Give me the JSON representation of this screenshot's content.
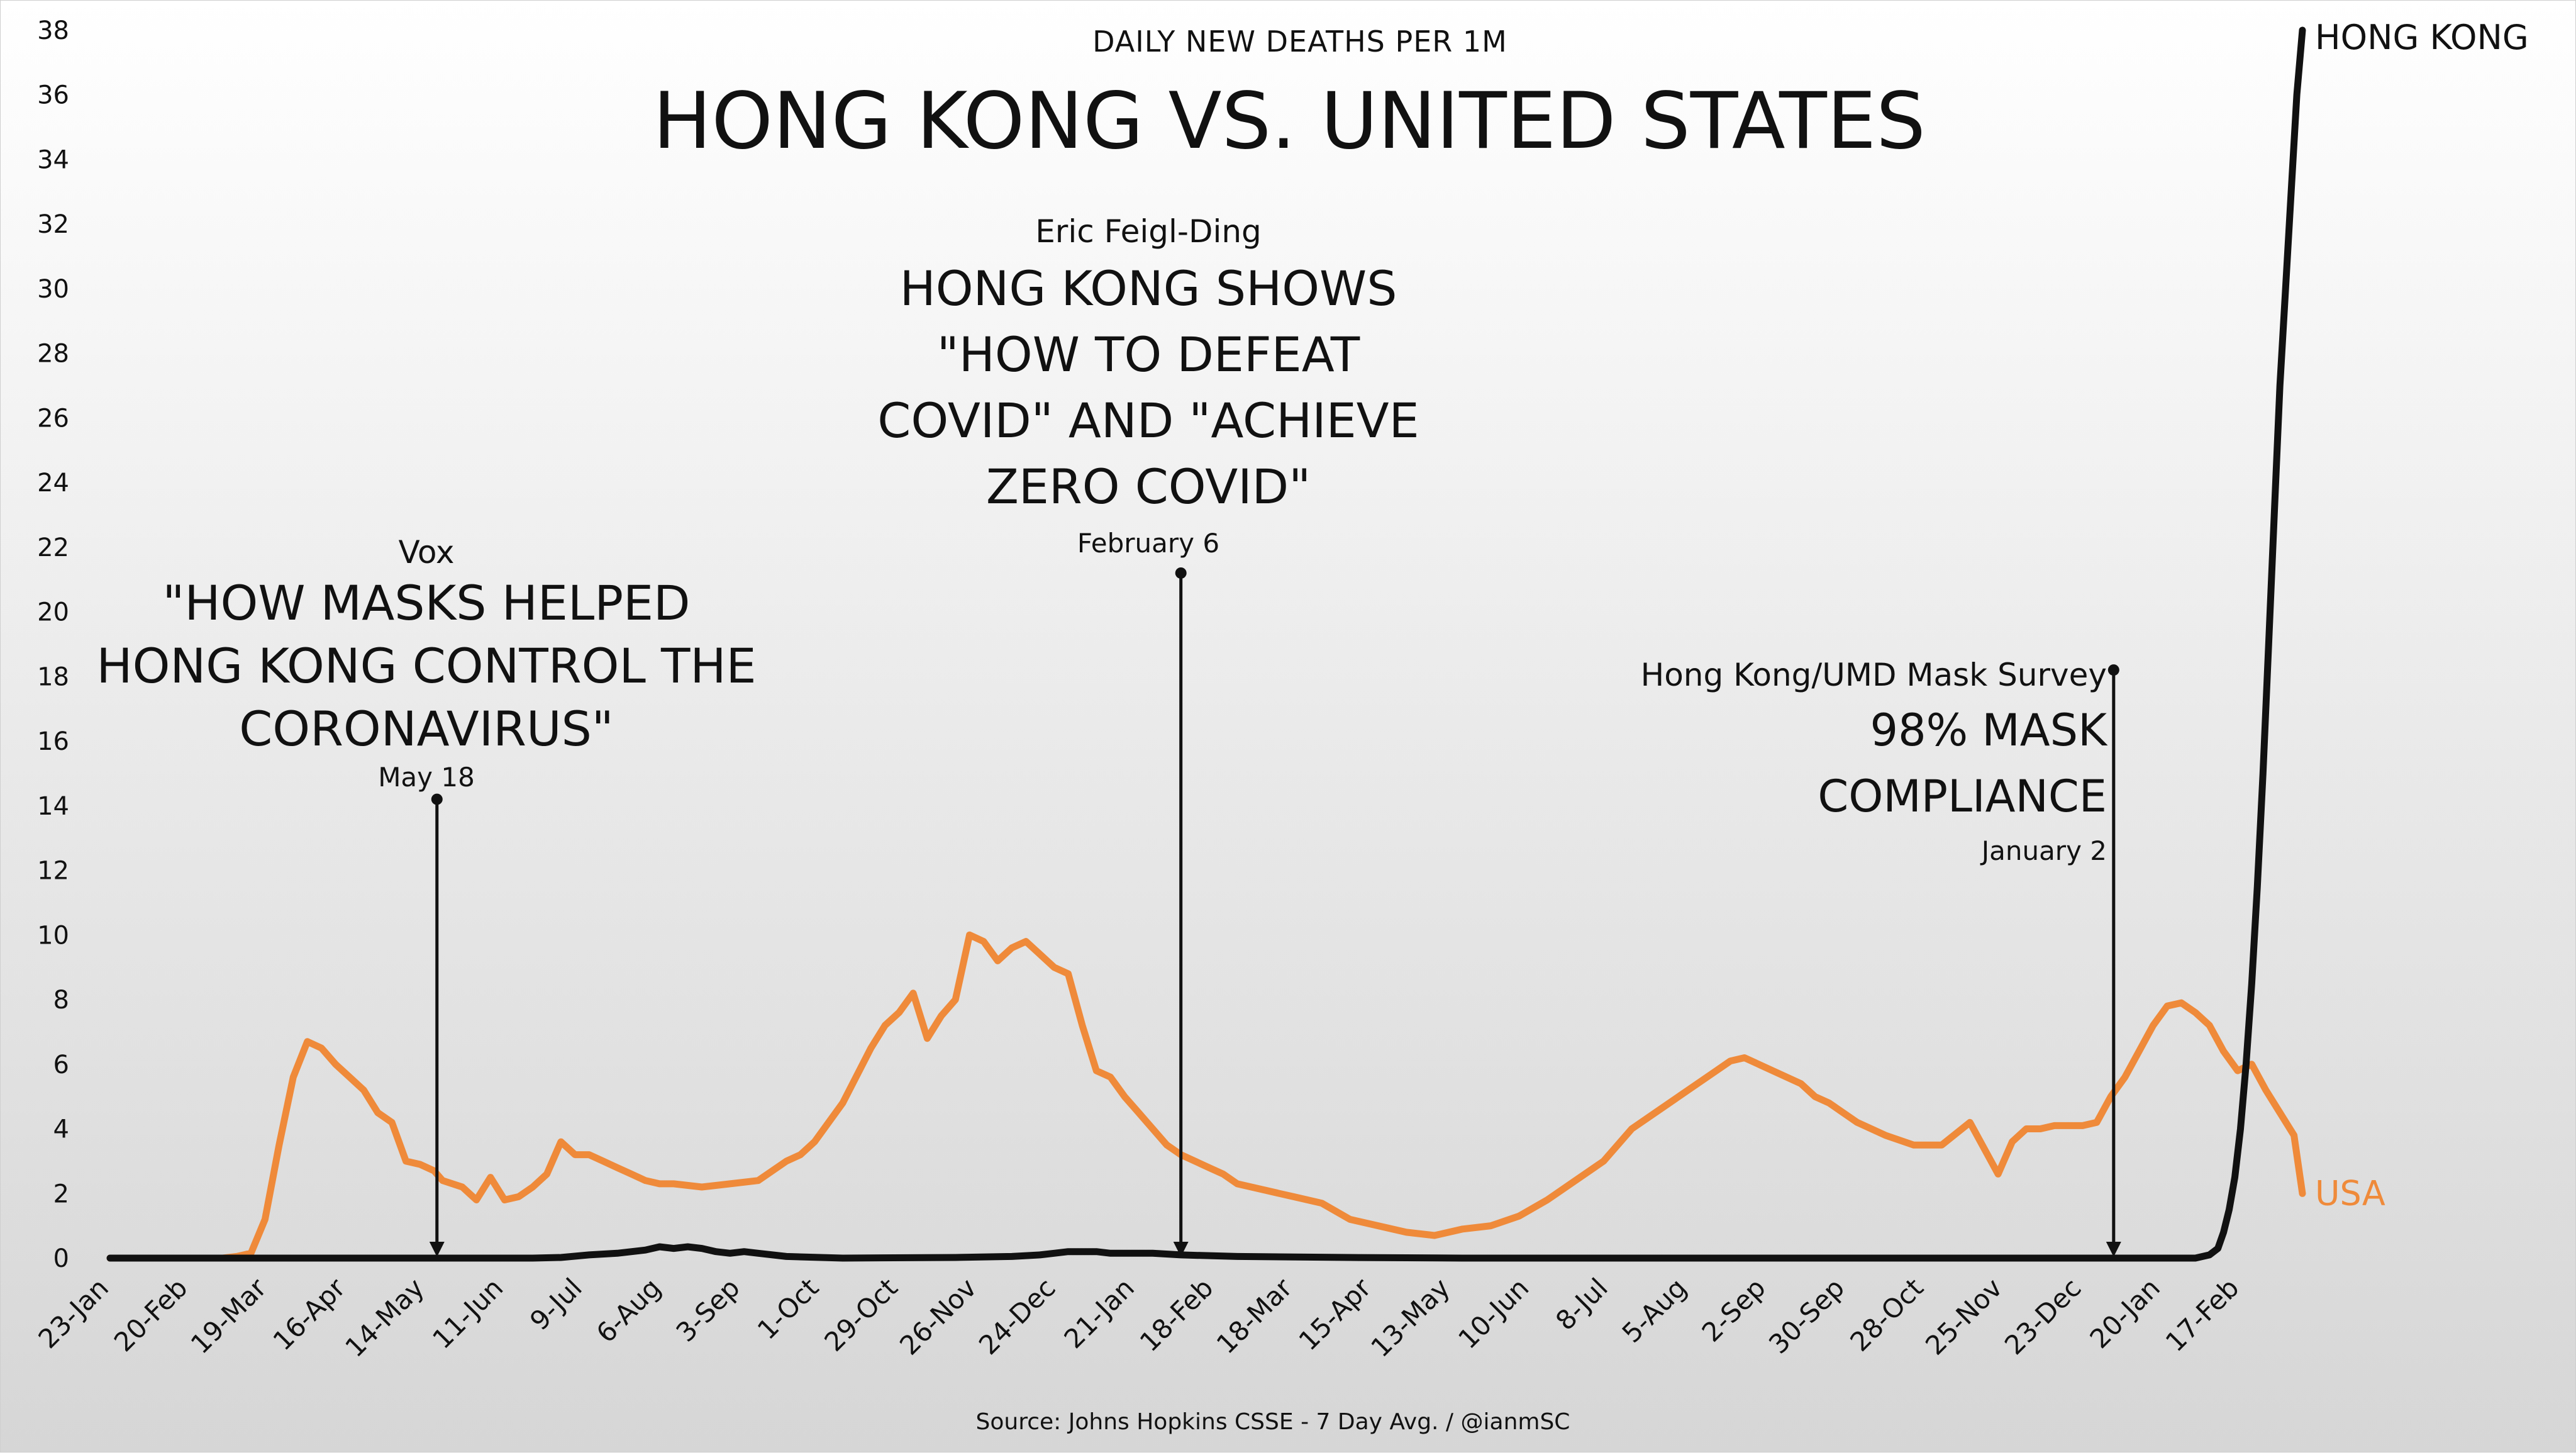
{
  "chart_data": {
    "type": "line",
    "subtitle": "DAILY NEW DEATHS PER 1M",
    "title": "HONG KONG VS. UNITED STATES",
    "source": "Source: Johns Hopkins CSSE - 7 Day Avg. / @ianmSC",
    "ylim": [
      0,
      38
    ],
    "yticks": [
      0,
      2,
      4,
      6,
      8,
      10,
      12,
      14,
      16,
      18,
      20,
      22,
      24,
      26,
      28,
      30,
      32,
      34,
      36,
      38
    ],
    "x_range": [
      0,
      780
    ],
    "x_ticks": [
      {
        "day": 0,
        "label": "23-Jan"
      },
      {
        "day": 28,
        "label": "20-Feb"
      },
      {
        "day": 56,
        "label": "19-Mar"
      },
      {
        "day": 84,
        "label": "16-Apr"
      },
      {
        "day": 112,
        "label": "14-May"
      },
      {
        "day": 140,
        "label": "11-Jun"
      },
      {
        "day": 168,
        "label": "9-Jul"
      },
      {
        "day": 196,
        "label": "6-Aug"
      },
      {
        "day": 224,
        "label": "3-Sep"
      },
      {
        "day": 252,
        "label": "1-Oct"
      },
      {
        "day": 280,
        "label": "29-Oct"
      },
      {
        "day": 308,
        "label": "26-Nov"
      },
      {
        "day": 336,
        "label": "24-Dec"
      },
      {
        "day": 364,
        "label": "21-Jan"
      },
      {
        "day": 392,
        "label": "18-Feb"
      },
      {
        "day": 420,
        "label": "18-Mar"
      },
      {
        "day": 448,
        "label": "15-Apr"
      },
      {
        "day": 476,
        "label": "13-May"
      },
      {
        "day": 504,
        "label": "10-Jun"
      },
      {
        "day": 532,
        "label": "8-Jul"
      },
      {
        "day": 560,
        "label": "5-Aug"
      },
      {
        "day": 588,
        "label": "2-Sep"
      },
      {
        "day": 616,
        "label": "30-Sep"
      },
      {
        "day": 644,
        "label": "28-Oct"
      },
      {
        "day": 672,
        "label": "25-Nov"
      },
      {
        "day": 700,
        "label": "23-Dec"
      },
      {
        "day": 728,
        "label": "20-Jan"
      },
      {
        "day": 756,
        "label": "17-Feb"
      }
    ],
    "series": [
      {
        "name": "USA",
        "color": "#ef8a3a",
        "x": [
          0,
          30,
          40,
          45,
          50,
          55,
          60,
          65,
          70,
          75,
          80,
          85,
          90,
          95,
          100,
          105,
          110,
          115,
          118,
          125,
          130,
          135,
          140,
          145,
          150,
          155,
          160,
          165,
          170,
          175,
          180,
          185,
          190,
          195,
          200,
          210,
          220,
          230,
          240,
          245,
          250,
          260,
          270,
          275,
          280,
          285,
          290,
          295,
          300,
          305,
          310,
          315,
          320,
          325,
          330,
          335,
          340,
          345,
          350,
          355,
          360,
          365,
          370,
          375,
          380,
          385,
          390,
          395,
          400,
          405,
          410,
          415,
          420,
          430,
          440,
          450,
          460,
          470,
          480,
          490,
          500,
          510,
          520,
          530,
          540,
          550,
          560,
          570,
          575,
          580,
          590,
          600,
          605,
          610,
          620,
          630,
          640,
          650,
          660,
          670,
          675,
          680,
          685,
          690,
          700,
          705,
          710,
          715,
          720,
          725,
          730,
          735,
          740,
          745,
          750,
          755,
          760,
          765,
          770,
          775,
          778
        ],
        "values": [
          0,
          0,
          0,
          0.05,
          0.15,
          1.2,
          3.5,
          5.6,
          6.7,
          6.5,
          6.0,
          5.6,
          5.2,
          4.5,
          4.2,
          3.0,
          2.9,
          2.7,
          2.4,
          2.2,
          1.8,
          2.5,
          1.8,
          1.9,
          2.2,
          2.6,
          3.6,
          3.2,
          3.2,
          3.0,
          2.8,
          2.6,
          2.4,
          2.3,
          2.3,
          2.2,
          2.3,
          2.4,
          3.0,
          3.2,
          3.6,
          4.8,
          6.5,
          7.2,
          7.6,
          8.2,
          6.8,
          7.5,
          8.0,
          10.0,
          9.8,
          9.2,
          9.6,
          9.8,
          9.4,
          9.0,
          8.8,
          7.2,
          5.8,
          5.6,
          5.0,
          4.5,
          4.0,
          3.5,
          3.2,
          3.0,
          2.8,
          2.6,
          2.3,
          2.2,
          2.1,
          2.0,
          1.9,
          1.7,
          1.2,
          1.0,
          0.8,
          0.7,
          0.9,
          1.0,
          1.3,
          1.8,
          2.4,
          3.0,
          4.0,
          4.6,
          5.2,
          5.8,
          6.1,
          6.2,
          5.8,
          5.4,
          5.0,
          4.8,
          4.2,
          3.8,
          3.5,
          3.5,
          4.2,
          2.6,
          3.6,
          4.0,
          4.0,
          4.1,
          4.1,
          4.2,
          5.0,
          5.6,
          6.4,
          7.2,
          7.8,
          7.9,
          7.6,
          7.2,
          6.4,
          5.8,
          6.0,
          5.2,
          4.5,
          3.8,
          2.0
        ],
        "label": "USA"
      },
      {
        "name": "HONG KONG",
        "color": "#111111",
        "x": [
          0,
          100,
          120,
          150,
          160,
          170,
          180,
          190,
          195,
          200,
          205,
          210,
          215,
          220,
          225,
          230,
          240,
          260,
          300,
          320,
          330,
          335,
          340,
          345,
          350,
          355,
          360,
          370,
          380,
          400,
          440,
          480,
          520,
          560,
          600,
          640,
          680,
          700,
          720,
          740,
          745,
          748,
          750,
          752,
          754,
          756,
          758,
          760,
          762,
          764,
          766,
          768,
          770,
          772,
          774,
          776,
          778
        ],
        "values": [
          0,
          0,
          0,
          0,
          0.02,
          0.1,
          0.15,
          0.25,
          0.35,
          0.3,
          0.35,
          0.3,
          0.2,
          0.15,
          0.2,
          0.15,
          0.05,
          0,
          0.02,
          0.05,
          0.1,
          0.15,
          0.2,
          0.2,
          0.2,
          0.15,
          0.15,
          0.15,
          0.1,
          0.05,
          0.02,
          0,
          0,
          0,
          0,
          0,
          0,
          0,
          0,
          0,
          0.1,
          0.3,
          0.8,
          1.5,
          2.5,
          4.0,
          6.0,
          8.5,
          11.5,
          15.0,
          19.0,
          23.0,
          27.0,
          30.0,
          33.0,
          36.0,
          38.0
        ],
        "label": "HONG KONG"
      }
    ],
    "annotations": [
      {
        "source": "Vox",
        "headline": [
          "\"HOW MASKS HELPED",
          "HONG KONG CONTROL THE",
          "CORONAVIRUS\""
        ],
        "date": "May 18",
        "day": 116,
        "y_top": 14.2
      },
      {
        "source": "Eric Feigl-Ding",
        "headline": [
          "HONG KONG SHOWS",
          "\"HOW TO DEFEAT",
          "COVID\" AND \"ACHIEVE",
          "ZERO COVID\""
        ],
        "date": "February 6",
        "day": 380,
        "y_top": 21.2
      },
      {
        "source": "Hong Kong/UMD Mask Survey",
        "headline": [
          "98% MASK",
          "COMPLIANCE"
        ],
        "date": "January 2",
        "day": 711,
        "y_top": 18.2
      }
    ]
  }
}
